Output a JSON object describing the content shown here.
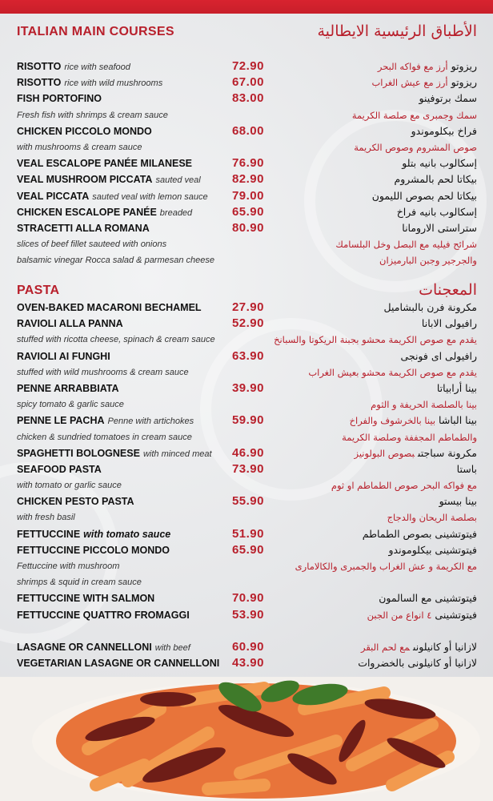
{
  "colors": {
    "accent": "#b8202c",
    "band": "#d8232f"
  },
  "sections": [
    {
      "title": "ITALIAN MAIN COURSES",
      "title_ar": "الأطباق الرئيسية الايطالية",
      "rows": [
        {
          "name": "RISOTTO",
          "desc": "rice with seafood",
          "price": "72.90",
          "ar": "ريزوتو",
          "ar_desc": "أرز مع فواكه البحر"
        },
        {
          "name": "RISOTTO",
          "desc": "rice with wild mushrooms",
          "price": "67.00",
          "ar": "ريزوتو",
          "ar_desc": "أرز مع عيش الغراب"
        },
        {
          "name": "FISH PORTOFINO",
          "price": "83.00",
          "ar": "سمك برتوفينو"
        },
        {
          "desc_line": "Fresh fish with shrimps & cream sauce",
          "ar_desc_line": "سمك وجمبرى مع صلصة الكريمة"
        },
        {
          "name": "CHICKEN PICCOLO MONDO",
          "price": "68.00",
          "ar": "فراخ بيكلوموندو"
        },
        {
          "desc_line": "with mushrooms & cream sauce",
          "ar_desc_line": "صوص المشروم وصوص الكريمة"
        },
        {
          "name": "VEAL ESCALOPE PANÉE MILANESE",
          "price": "76.90",
          "ar": "إسكالوب بانيه بتلو"
        },
        {
          "name": "VEAL MUSHROOM PICCATA",
          "desc": "sauted veal",
          "price": "82.90",
          "ar": "بيكاتا لحم بالمشروم"
        },
        {
          "name": "VEAL PICCATA",
          "desc": "sauted veal with lemon sauce",
          "price": "79.00",
          "ar": "بيكاتا لحم بصوص الليمون"
        },
        {
          "name": "CHICKEN ESCALOPE PANÉE",
          "desc": "breaded",
          "price": "65.90",
          "ar": "إسكالوب بانيه فراخ"
        },
        {
          "name": "STRACETTI ALLA ROMANA",
          "price": "80.90",
          "ar": "ستراستى الارومانا"
        },
        {
          "desc_line": "slices of beef fillet sauteed with onions",
          "ar_desc_line": "شرائح فيليه مع البصل وخل البلسامك"
        },
        {
          "desc_line": "balsamic vinegar Rocca salad & parmesan cheese",
          "ar_desc_line": "والجرجير وجبن البارميزان"
        }
      ]
    },
    {
      "title": "PASTA",
      "title_ar": "المعجنات",
      "rows": [
        {
          "name": "OVEN-BAKED MACARONI BECHAMEL",
          "price": "27.90",
          "ar": "مكرونة فرن بالبشاميل"
        },
        {
          "name": "RAVIOLI ALLA PANNA",
          "price": "52.90",
          "ar": "رافيولى الابانا"
        },
        {
          "desc_line": "stuffed with ricotta cheese, spinach & cream sauce",
          "ar_desc_line": "يقدم مع صوص الكريمة محشو بجبنة الريكوتا والسبانخ"
        },
        {
          "name": "RAVIOLI AI FUNGHI",
          "price": "63.90",
          "ar": "رافيولى اى فونجى"
        },
        {
          "desc_line": "stuffed with wild mushrooms & cream sauce",
          "ar_desc_line": "يقدم مع صوص الكريمة محشو بعيش الغراب"
        },
        {
          "name": "PENNE ARRABBIATA",
          "price": "39.90",
          "ar": "بينا أرابياتا"
        },
        {
          "desc_line": "spicy tomato & garlic sauce",
          "ar_desc_line": "بينا بالصلصة الحريفة و الثوم"
        },
        {
          "name": "PENNE LE PACHA",
          "desc": "Penne with artichokes",
          "price": "59.90",
          "ar": "بينا الباشا",
          "ar_desc": "بينا بالخرشوف والفراخ"
        },
        {
          "desc_line": "chicken & sundried tomatoes in cream sauce",
          "ar_desc_line": "والطماطم المجففة وصلصة الكريمة"
        },
        {
          "name": "SPAGHETTI BOLOGNESE",
          "desc": "with minced meat",
          "price": "46.90",
          "ar": "مكرونة سباجتى",
          "ar_desc": "بصوص البولونيز"
        },
        {
          "name": "SEAFOOD PASTA",
          "price": "73.90",
          "ar": "باستا"
        },
        {
          "desc_line": "with tomato or garlic sauce",
          "ar_desc_line": "مع فواكه البحر صوص الطماطم او ثوم"
        },
        {
          "name": "CHICKEN PESTO PASTA",
          "price": "55.90",
          "ar": "بينا بيستو"
        },
        {
          "desc_line": "with fresh basil",
          "ar_desc_line": "بصلصة الريحان والدجاج"
        },
        {
          "name": "FETTUCCINE",
          "name_italic": "with tomato sauce",
          "price": "51.90",
          "ar": "فيتوتشينى بصوص الطماطم"
        },
        {
          "name": "FETTUCCINE PICCOLO MONDO",
          "price": "65.90",
          "ar": "فيتوتشينى بيكلوموندو"
        },
        {
          "desc_line": "Fettuccine with mushroom",
          "ar_desc_line": "مع الكريمة و عش الغراب والجمبرى والكالامارى"
        },
        {
          "desc_line": " shrimps & squid in cream sauce"
        },
        {
          "name": "FETTUCCINE WITH SALMON",
          "price": "70.90",
          "ar": "فيتوتشينى مع السالمون"
        },
        {
          "name": "FETTUCCINE QUATTRO FROMAGGI",
          "price": "53.90",
          "ar": "فيتوتشينى",
          "ar_desc": "٤ انواع من الجبن"
        },
        {
          "blank": true
        },
        {
          "name": "LASAGNE OR CANNELLONI",
          "desc": "with beef",
          "price": "60.90",
          "ar": "لازانيا أو كانيلونى",
          "ar_desc": "مع لحم البقر"
        },
        {
          "name": "VEGETARIAN LASAGNE OR CANNELLONI",
          "price": "43.90",
          "ar": "لازانيا أو كانيلونى بالخضروات"
        }
      ]
    }
  ]
}
